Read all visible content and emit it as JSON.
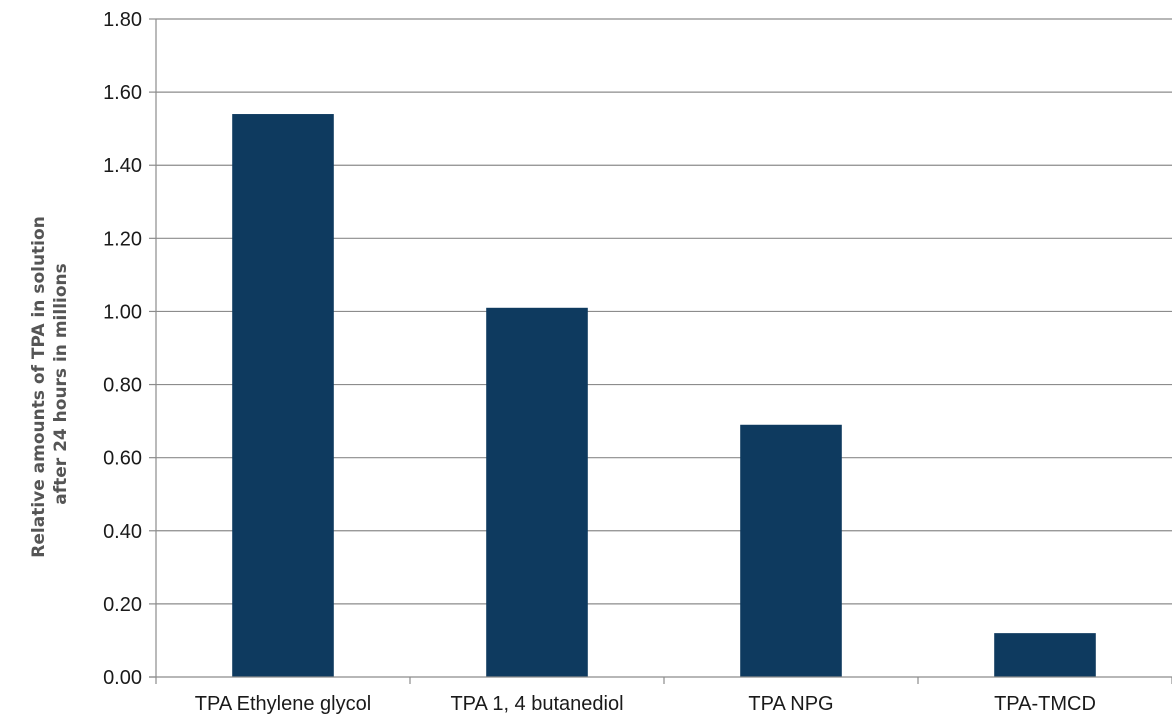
{
  "chart_data": {
    "type": "bar",
    "title": "",
    "xlabel": "",
    "ylabel_lines": [
      "Relative amounts of TPA in solution",
      "after 24 hours in millions"
    ],
    "categories": [
      "TPA Ethylene glycol",
      "TPA 1, 4 butanediol",
      "TPA NPG",
      "TPA-TMCD"
    ],
    "values": [
      1.54,
      1.01,
      0.69,
      0.12
    ],
    "ylim": [
      0,
      1.8
    ],
    "yticks": [
      "0.00",
      "0.20",
      "0.40",
      "0.60",
      "0.80",
      "1.00",
      "1.20",
      "1.40",
      "1.60",
      "1.80"
    ],
    "grid": true,
    "legend": "none",
    "colors": {
      "bar": "#0e3a5f",
      "grid": "#8c8c8c",
      "axis": "#8c8c8c"
    }
  }
}
